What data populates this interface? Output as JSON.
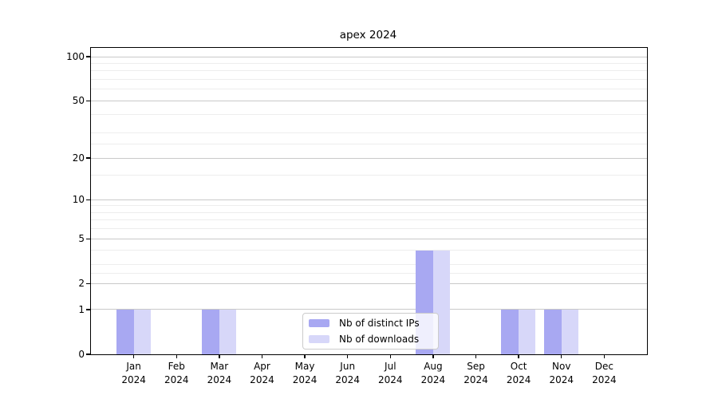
{
  "chart_data": {
    "type": "bar",
    "title": "apex 2024",
    "categories": [
      {
        "month": "Jan",
        "year": "2024"
      },
      {
        "month": "Feb",
        "year": "2024"
      },
      {
        "month": "Mar",
        "year": "2024"
      },
      {
        "month": "Apr",
        "year": "2024"
      },
      {
        "month": "May",
        "year": "2024"
      },
      {
        "month": "Jun",
        "year": "2024"
      },
      {
        "month": "Jul",
        "year": "2024"
      },
      {
        "month": "Aug",
        "year": "2024"
      },
      {
        "month": "Sep",
        "year": "2024"
      },
      {
        "month": "Oct",
        "year": "2024"
      },
      {
        "month": "Nov",
        "year": "2024"
      },
      {
        "month": "Dec",
        "year": "2024"
      }
    ],
    "series": [
      {
        "name": "Nb of distinct IPs",
        "color": "#a8a8f2",
        "values": [
          1,
          0,
          1,
          0,
          0,
          0,
          0,
          4,
          0,
          1,
          1,
          0
        ]
      },
      {
        "name": "Nb of downloads",
        "color": "#d7d7f9",
        "values": [
          1,
          0,
          1,
          0,
          0,
          0,
          0,
          4,
          0,
          1,
          1,
          0
        ]
      }
    ],
    "xlabel": "",
    "ylabel": "",
    "y_axis": {
      "scale": "log1p",
      "major_ticks": [
        0,
        1,
        2,
        5,
        10,
        20,
        50,
        100
      ],
      "minor_ticks": [
        2.5,
        3,
        4,
        6,
        7,
        8,
        9,
        15,
        25,
        30,
        40,
        60,
        70,
        80,
        90
      ],
      "ylim_top_value": 115
    },
    "grid": true,
    "legend_position": "lower-center"
  },
  "colors": {
    "background": "#ffffff",
    "axis": "#000000",
    "major_grid": "#c9c9c9",
    "minor_grid": "#ededed",
    "bar_dark": "#a8a8f2",
    "bar_light": "#d7d7f9"
  }
}
